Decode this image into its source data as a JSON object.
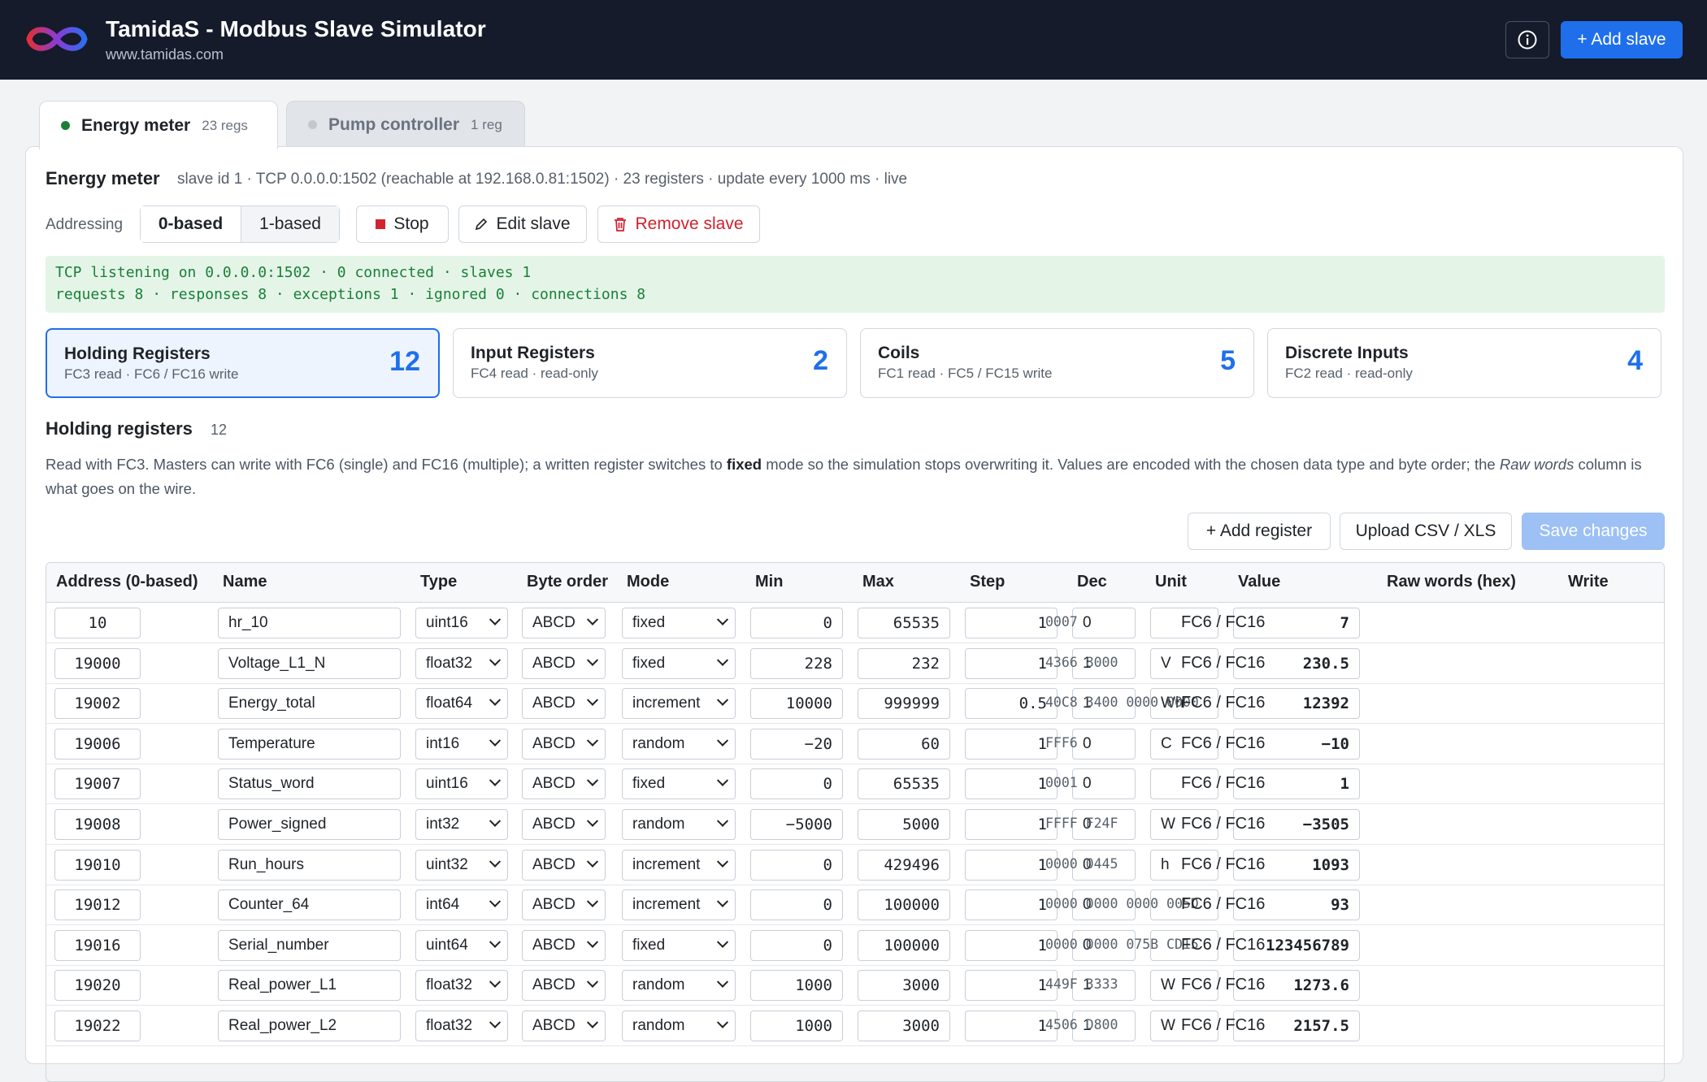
{
  "app": {
    "title": "TamidaS - Modbus Slave Simulator",
    "url": "www.tamidas.com",
    "add_slave_label": "+ Add slave"
  },
  "tabs": [
    {
      "name": "Energy meter",
      "count": "23 regs",
      "status_color": "#1a7f37"
    },
    {
      "name": "Pump controller",
      "count": "1 reg",
      "status_color": "#c4c8ce"
    }
  ],
  "slave": {
    "title": "Energy meter",
    "meta": "slave id 1 · TCP 0.0.0.0:1502 (reachable at 192.168.0.81:1502) · 23 registers · update every 1000 ms · live",
    "addressing_label": "Addressing",
    "addressing_options": [
      "0-based",
      "1-based"
    ],
    "stop_label": "Stop",
    "edit_label": "Edit slave",
    "remove_label": "Remove slave"
  },
  "status": {
    "line1": "TCP listening on 0.0.0.0:1502 · 0 connected · slaves 1",
    "line2": "requests 8 · responses 8 · exceptions 1 · ignored 0 · connections 8"
  },
  "cards": [
    {
      "title": "Holding Registers",
      "sub": "FC3 read · FC6 / FC16 write",
      "count": "12"
    },
    {
      "title": "Input Registers",
      "sub": "FC4 read · read-only",
      "count": "2"
    },
    {
      "title": "Coils",
      "sub": "FC1 read · FC5 / FC15 write",
      "count": "5"
    },
    {
      "title": "Discrete Inputs",
      "sub": "FC2 read · read-only",
      "count": "4"
    }
  ],
  "section": {
    "title": "Holding registers",
    "count": "12",
    "desc_1": "Read with FC3. Masters can write with FC6 (single) and FC16 (multiple); a written register switches to ",
    "desc_bold": "fixed",
    "desc_2": " mode so the simulation stops overwriting it. Values are encoded with the chosen data type and byte order; the ",
    "desc_italic": "Raw words",
    "desc_3": " column is what goes on the wire.",
    "add_register_label": "+ Add register",
    "upload_label": "Upload CSV / XLS",
    "save_label": "Save changes"
  },
  "table": {
    "headers": [
      "Address (0-based)",
      "Name",
      "Type",
      "Byte order",
      "Mode",
      "Min",
      "Max",
      "Step",
      "Dec",
      "Unit",
      "Value",
      "Raw words (hex)",
      "Write"
    ],
    "rows": [
      {
        "address": "10",
        "name": "hr_10",
        "type": "uint16",
        "byte_order": "ABCD",
        "mode": "fixed",
        "min": "0",
        "max": "65535",
        "step": "1",
        "dec": "0",
        "unit": "",
        "value": "7",
        "raw": "0007",
        "write": "FC6 / FC16"
      },
      {
        "address": "19000",
        "name": "Voltage_L1_N",
        "type": "float32",
        "byte_order": "ABCD",
        "mode": "fixed",
        "min": "228",
        "max": "232",
        "step": "1",
        "dec": "1",
        "unit": "V",
        "value": "230.5",
        "raw": "4366 8000",
        "write": "FC6 / FC16"
      },
      {
        "address": "19002",
        "name": "Energy_total",
        "type": "float64",
        "byte_order": "ABCD",
        "mode": "increment",
        "min": "10000",
        "max": "999999",
        "step": "0.5",
        "dec": "1",
        "unit": "Wh",
        "value": "12392",
        "raw": "40C8 3400 0000 0000",
        "write": "FC6 / FC16"
      },
      {
        "address": "19006",
        "name": "Temperature",
        "type": "int16",
        "byte_order": "ABCD",
        "mode": "random",
        "min": "−20",
        "max": "60",
        "step": "1",
        "dec": "0",
        "unit": "C",
        "value": "−10",
        "raw": "FFF6",
        "write": "FC6 / FC16"
      },
      {
        "address": "19007",
        "name": "Status_word",
        "type": "uint16",
        "byte_order": "ABCD",
        "mode": "fixed",
        "min": "0",
        "max": "65535",
        "step": "1",
        "dec": "0",
        "unit": "",
        "value": "1",
        "raw": "0001",
        "write": "FC6 / FC16"
      },
      {
        "address": "19008",
        "name": "Power_signed",
        "type": "int32",
        "byte_order": "ABCD",
        "mode": "random",
        "min": "−5000",
        "max": "5000",
        "step": "1",
        "dec": "0",
        "unit": "W",
        "value": "−3505",
        "raw": "FFFF F24F",
        "write": "FC6 / FC16"
      },
      {
        "address": "19010",
        "name": "Run_hours",
        "type": "uint32",
        "byte_order": "ABCD",
        "mode": "increment",
        "min": "0",
        "max": "429496",
        "step": "1",
        "dec": "0",
        "unit": "h",
        "value": "1093",
        "raw": "0000 0445",
        "write": "FC6 / FC16"
      },
      {
        "address": "19012",
        "name": "Counter_64",
        "type": "int64",
        "byte_order": "ABCD",
        "mode": "increment",
        "min": "0",
        "max": "100000",
        "step": "1",
        "dec": "0",
        "unit": "",
        "value": "93",
        "raw": "0000 0000 0000 005D",
        "write": "FC6 / FC16"
      },
      {
        "address": "19016",
        "name": "Serial_number",
        "type": "uint64",
        "byte_order": "ABCD",
        "mode": "fixed",
        "min": "0",
        "max": "100000",
        "step": "1",
        "dec": "0",
        "unit": "",
        "value": "123456789",
        "raw": "0000 0000 075B CD15",
        "write": "FC6 / FC16"
      },
      {
        "address": "19020",
        "name": "Real_power_L1",
        "type": "float32",
        "byte_order": "ABCD",
        "mode": "random",
        "min": "1000",
        "max": "3000",
        "step": "1",
        "dec": "1",
        "unit": "W",
        "value": "1273.6",
        "raw": "449F 3333",
        "write": "FC6 / FC16"
      },
      {
        "address": "19022",
        "name": "Real_power_L2",
        "type": "float32",
        "byte_order": "ABCD",
        "mode": "random",
        "min": "1000",
        "max": "3000",
        "step": "1",
        "dec": "1",
        "unit": "W",
        "value": "2157.5",
        "raw": "4506 D800",
        "write": "FC6 / FC16"
      }
    ]
  },
  "icons": {
    "logo": "infinity-logo",
    "info": "info-icon",
    "stop": "stop-icon",
    "edit": "pencil-icon",
    "remove": "trash-icon",
    "select": "chevron-down-icon"
  },
  "colors": {
    "topbar": "#151b2b",
    "accent": "#1f6feb",
    "danger": "#cf222e",
    "status_bg": "#e4f5e8",
    "status_text": "#1a7f37"
  }
}
